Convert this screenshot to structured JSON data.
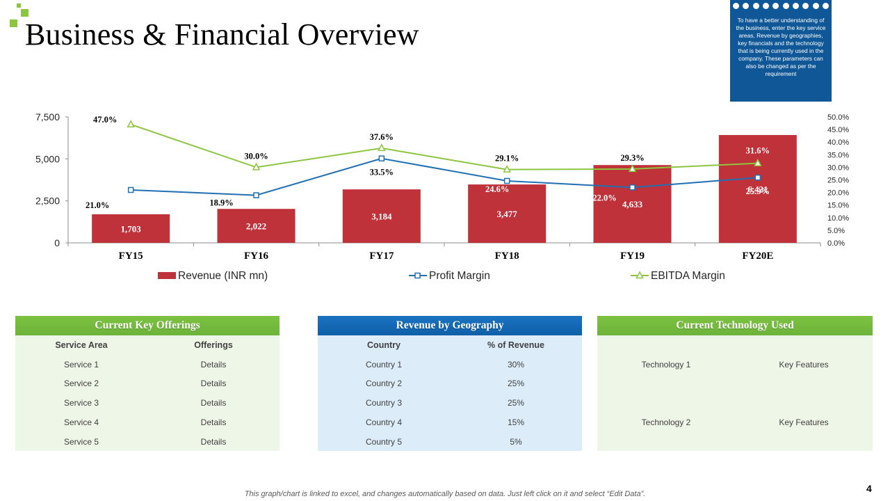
{
  "title": "Business & Financial Overview",
  "note": "To have a better understanding of the business, enter the key service areas, Revenue by geographies, key financials and the technology that is being currently used in the company. These parameters can also be changed  as per the requirement",
  "chart_data": {
    "type": "bar",
    "categories": [
      "FY15",
      "FY16",
      "FY17",
      "FY18",
      "FY19",
      "FY20E"
    ],
    "y_left": {
      "min": 0,
      "max": 7500,
      "ticks": [
        "0",
        "2,500",
        "5,000",
        "7,500"
      ]
    },
    "y_right": {
      "min": 0,
      "max": 50,
      "ticks": [
        "0.0%",
        "5.0%",
        "10.0%",
        "15.0%",
        "20.0%",
        "25.0%",
        "30.0%",
        "35.0%",
        "40.0%",
        "45.0%",
        "50.0%"
      ]
    },
    "series": [
      {
        "name": "Revenue (INR mn)",
        "type": "bar",
        "axis": "left",
        "color": "#c0323a",
        "values": [
          1703,
          2022,
          3184,
          3477,
          4633,
          6421
        ],
        "labels": [
          "1,703",
          "2,022",
          "3,184",
          "3,477",
          "4,633",
          "6,421"
        ]
      },
      {
        "name": "Profit Margin",
        "type": "line",
        "axis": "right",
        "color": "#1f6fb2",
        "values": [
          21.0,
          18.9,
          33.5,
          24.6,
          22.0,
          25.9
        ],
        "labels": [
          "21.0%",
          "18.9%",
          "33.5%",
          "24.6%",
          "22.0%",
          "25.9%"
        ]
      },
      {
        "name": "EBITDA Margin",
        "type": "line",
        "axis": "right",
        "color": "#8cc63f",
        "values": [
          47.0,
          30.0,
          37.6,
          29.1,
          29.3,
          31.6
        ],
        "labels": [
          "47.0%",
          "30.0%",
          "37.6%",
          "29.1%",
          "29.3%",
          "31.6%"
        ]
      }
    ]
  },
  "offerings": {
    "title": "Current Key Offerings",
    "columns": [
      "Service Area",
      "Offerings"
    ],
    "rows": [
      [
        "Service 1",
        "Details"
      ],
      [
        "Service 2",
        "Details"
      ],
      [
        "Service 3",
        "Details"
      ],
      [
        "Service 4",
        "Details"
      ],
      [
        "Service 5",
        "Details"
      ]
    ]
  },
  "geography": {
    "title": "Revenue by Geography",
    "columns": [
      "Country",
      "% of Revenue"
    ],
    "rows": [
      [
        "Country 1",
        "30%"
      ],
      [
        "Country 2",
        "25%"
      ],
      [
        "Country 3",
        "25%"
      ],
      [
        "Country 4",
        "15%"
      ],
      [
        "Country 5",
        "5%"
      ]
    ]
  },
  "technology": {
    "title": "Current Technology Used",
    "rows": [
      [
        "Technology 1",
        "Key Features"
      ],
      [
        "Technology 2",
        "Key Features"
      ]
    ]
  },
  "footer": "This graph/chart is linked to excel, and changes automatically based on data. Just left click on it and select “Edit Data”.",
  "page_number": "4",
  "colors": {
    "accent_green": "#8cc63f",
    "brand_blue": "#0f5796",
    "bar_red": "#c0323a"
  }
}
